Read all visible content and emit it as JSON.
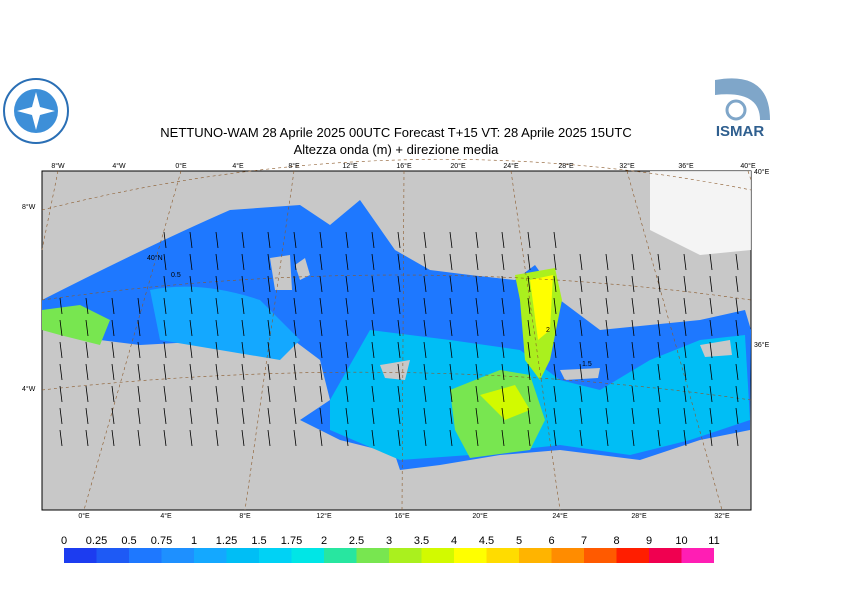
{
  "header": {
    "title": "NETTUNO-WAM  28   Aprile  2025 00UTC Forecast T+15 VT: 28   Aprile  2025 15UTC",
    "subtitle": "Altezza onda (m) + direzione media"
  },
  "logos": {
    "right": "ISMAR"
  },
  "map": {
    "top_labels": [
      "8°W",
      "4°W",
      "0°E",
      "4°E",
      "8°E",
      "12°E",
      "16°E",
      "20°E",
      "24°E",
      "28°E",
      "32°E",
      "36°E",
      "40°E"
    ],
    "bottom_labels": [
      "0°E",
      "4°E",
      "8°E",
      "12°E",
      "16°E",
      "20°E",
      "24°E",
      "28°E",
      "32°E"
    ],
    "left_labels": [
      "8°W",
      "4°W"
    ],
    "right_labels": [
      "40°E",
      "36°E"
    ],
    "inner_labels": [
      "40°N"
    ],
    "contour_labels": [
      "0.5",
      "1.5",
      "2"
    ]
  },
  "colorbar": {
    "ticks": [
      0,
      0.25,
      0.5,
      0.75,
      1,
      1.25,
      1.5,
      1.75,
      2,
      2.5,
      3,
      3.5,
      4,
      4.5,
      5,
      6,
      7,
      8,
      9,
      10,
      11
    ],
    "colors": [
      "#1c3cf0",
      "#1e5af5",
      "#1e78ff",
      "#1e90ff",
      "#14a8ff",
      "#00bef5",
      "#00d2f5",
      "#00e6e6",
      "#28e6a0",
      "#78e650",
      "#aaf01e",
      "#d2fa00",
      "#ffff00",
      "#ffdc00",
      "#ffb400",
      "#ff8c00",
      "#ff5a00",
      "#ff1e00",
      "#f00050",
      "#ff1eb4"
    ]
  }
}
